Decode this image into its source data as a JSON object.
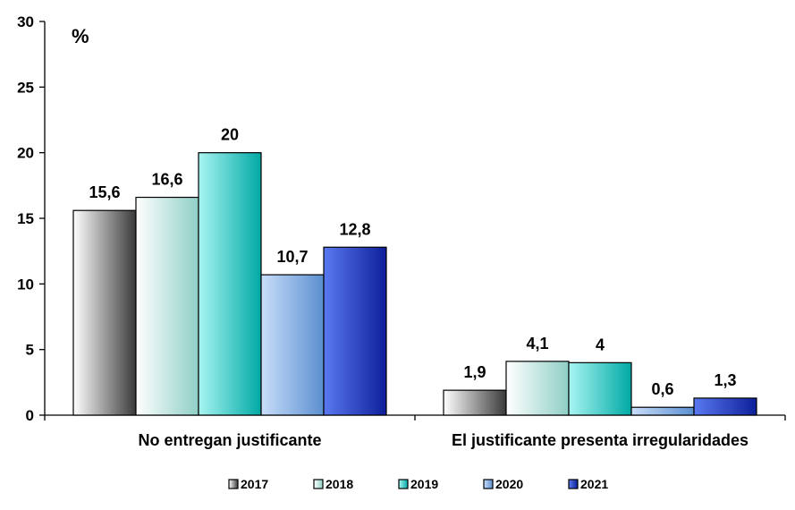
{
  "chart_data": {
    "type": "bar",
    "title": "",
    "xlabel": "",
    "ylabel": "%",
    "ylim": [
      0,
      30
    ],
    "yticks": [
      0,
      5,
      10,
      15,
      20,
      25,
      30
    ],
    "grid": false,
    "legend_position": "bottom",
    "categories": [
      "No entregan justificante",
      "El justificante presenta irregularidades"
    ],
    "series": [
      {
        "name": "2017",
        "values": [
          15.6,
          1.9
        ],
        "labels": [
          "15,6",
          "1,9"
        ],
        "color": "#8a8a8a",
        "gradient": [
          "#ffffff",
          "#3a3a3a"
        ]
      },
      {
        "name": "2018",
        "values": [
          16.6,
          4.1
        ],
        "labels": [
          "16,6",
          "4,1"
        ],
        "color": "#c6ece6",
        "gradient": [
          "#ffffff",
          "#8fcfc6"
        ]
      },
      {
        "name": "2019",
        "values": [
          20,
          4
        ],
        "labels": [
          "20",
          "4"
        ],
        "color": "#19d2cc",
        "gradient": [
          "#a8f5f2",
          "#00a9a5"
        ]
      },
      {
        "name": "2020",
        "values": [
          10.7,
          0.6
        ],
        "labels": [
          "10,7",
          "0,6"
        ],
        "color": "#8fb8e8",
        "gradient": [
          "#c9defa",
          "#5b8fd0"
        ]
      },
      {
        "name": "2021",
        "values": [
          12.8,
          1.3
        ],
        "labels": [
          "12,8",
          "1,3"
        ],
        "color": "#2947d6",
        "gradient": [
          "#5a79f0",
          "#0d1f9a"
        ]
      }
    ]
  }
}
